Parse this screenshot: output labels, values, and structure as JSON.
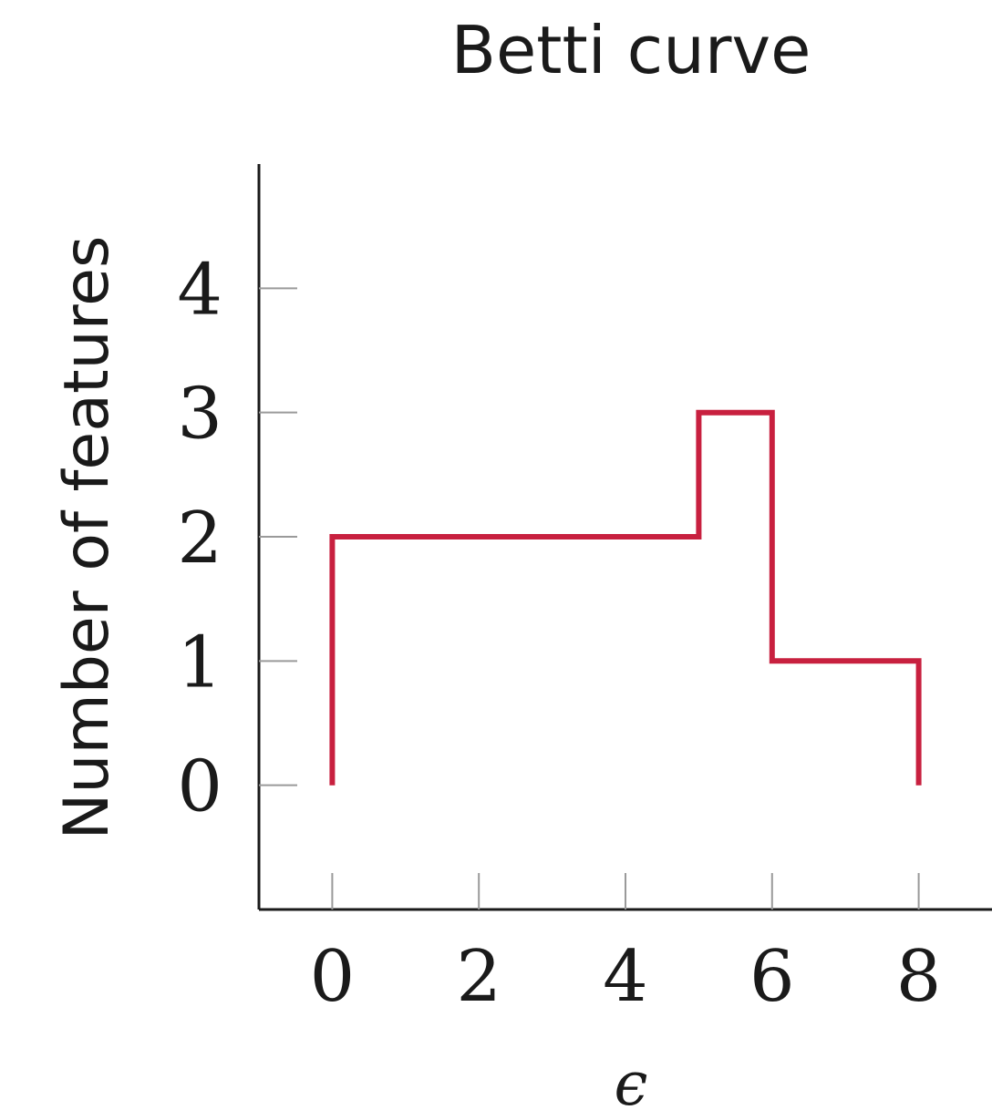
{
  "chart_data": {
    "type": "line",
    "step": true,
    "title": "Betti curve",
    "xlabel": "ϵ",
    "ylabel": "Number of features",
    "x_ticks": [
      0,
      2,
      4,
      6,
      8
    ],
    "y_ticks": [
      0,
      1,
      2,
      3,
      4
    ],
    "xlim": [
      -1,
      9
    ],
    "ylim": [
      -1,
      5
    ],
    "grid": false,
    "series": [
      {
        "color": "#c8203f",
        "points": [
          [
            0,
            0
          ],
          [
            0,
            2
          ],
          [
            5,
            2
          ],
          [
            5,
            3
          ],
          [
            6,
            3
          ],
          [
            6,
            1
          ],
          [
            8,
            1
          ],
          [
            8,
            0
          ]
        ]
      }
    ]
  }
}
